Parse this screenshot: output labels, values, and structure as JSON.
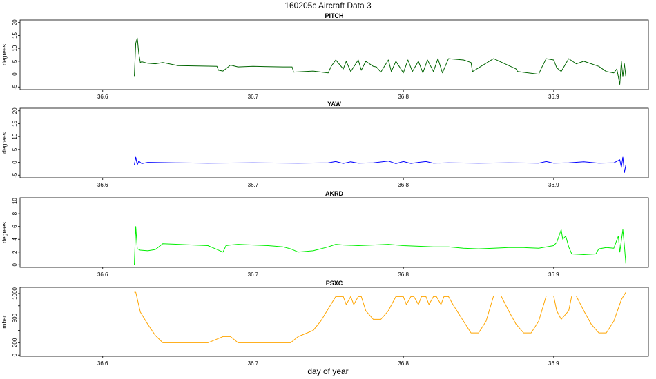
{
  "page": {
    "title": "160205c   Aircraft Data 3",
    "xlabel": "day of year"
  },
  "chart_data": [
    {
      "type": "line",
      "title": "PITCH",
      "ylabel": "degrees",
      "color": "#006400",
      "xlim": [
        36.545,
        36.963
      ],
      "ylim": [
        -6,
        21
      ],
      "xticks": [
        36.6,
        36.7,
        36.8,
        36.9
      ],
      "yticks": [
        -5,
        0,
        5,
        10,
        15,
        20
      ],
      "x": [
        36.621,
        36.622,
        36.623,
        36.624,
        36.625,
        36.626,
        36.63,
        36.635,
        36.64,
        36.65,
        36.66,
        36.67,
        36.676,
        36.677,
        36.68,
        36.685,
        36.69,
        36.7,
        36.71,
        36.72,
        36.726,
        36.727,
        36.74,
        36.75,
        36.752,
        36.755,
        36.76,
        36.762,
        36.765,
        36.77,
        36.772,
        36.775,
        36.78,
        36.782,
        36.785,
        36.79,
        36.792,
        36.795,
        36.8,
        36.803,
        36.806,
        36.81,
        36.813,
        36.816,
        36.82,
        36.823,
        36.826,
        36.83,
        36.84,
        36.845,
        36.846,
        36.86,
        36.875,
        36.876,
        36.89,
        36.892,
        36.895,
        36.9,
        36.902,
        36.905,
        36.91,
        36.915,
        36.92,
        36.93,
        36.935,
        36.94,
        36.942,
        36.944,
        36.945,
        36.946,
        36.947,
        36.948
      ],
      "y": [
        -1,
        12,
        14,
        8,
        4.5,
        4.8,
        4.2,
        4.0,
        4.5,
        3.3,
        3.2,
        3.1,
        3.0,
        1.5,
        1.2,
        3.5,
        2.8,
        3.0,
        2.9,
        2.8,
        2.8,
        0.8,
        1.2,
        0.5,
        3.0,
        5.5,
        2.0,
        5.0,
        1.0,
        5.5,
        1.5,
        5.0,
        3.0,
        2.8,
        0.8,
        5.5,
        1.0,
        5.0,
        0.5,
        5.5,
        1.0,
        5.0,
        0.5,
        5.5,
        1.0,
        6.0,
        0.5,
        6.0,
        5.5,
        4.5,
        1.0,
        6.0,
        2.0,
        1.0,
        0.0,
        2.5,
        6.0,
        5.5,
        2.5,
        1.0,
        6.0,
        4.0,
        5.0,
        3.0,
        1.0,
        0.5,
        2.0,
        -4.0,
        5.0,
        -1.0,
        4.0,
        -1.0
      ]
    },
    {
      "type": "line",
      "title": "YAW",
      "ylabel": "degrees",
      "color": "#0000ff",
      "xlim": [
        36.545,
        36.963
      ],
      "ylim": [
        -6,
        21
      ],
      "xticks": [
        36.6,
        36.7,
        36.8,
        36.9
      ],
      "yticks": [
        -5,
        0,
        5,
        10,
        15,
        20
      ],
      "x": [
        36.621,
        36.622,
        36.623,
        36.624,
        36.626,
        36.63,
        36.65,
        36.67,
        36.7,
        36.73,
        36.75,
        36.755,
        36.76,
        36.765,
        36.77,
        36.78,
        36.79,
        36.795,
        36.8,
        36.805,
        36.81,
        36.815,
        36.82,
        36.83,
        36.85,
        36.87,
        36.89,
        36.895,
        36.9,
        36.91,
        36.92,
        36.93,
        36.94,
        36.944,
        36.945,
        36.946,
        36.947,
        36.948
      ],
      "y": [
        -1.0,
        2.0,
        -1.0,
        0.5,
        -0.5,
        0.0,
        -0.2,
        -0.3,
        -0.2,
        -0.3,
        -0.2,
        0.3,
        -0.4,
        0.2,
        -0.3,
        -0.2,
        0.5,
        -0.5,
        0.3,
        -0.4,
        0.0,
        0.3,
        -0.3,
        -0.2,
        -0.3,
        -0.2,
        -0.3,
        0.3,
        -0.3,
        -0.2,
        0.2,
        -0.3,
        -0.2,
        1.0,
        -2.0,
        2.0,
        -4.0,
        -1.0
      ]
    },
    {
      "type": "line",
      "title": "AKRD",
      "ylabel": "degrees",
      "color": "#00ee00",
      "xlim": [
        36.545,
        36.963
      ],
      "ylim": [
        -0.4,
        10.5
      ],
      "xticks": [
        36.6,
        36.7,
        36.8,
        36.9
      ],
      "yticks": [
        0,
        2,
        4,
        6,
        8,
        10
      ],
      "x": [
        36.621,
        36.622,
        36.623,
        36.625,
        36.63,
        36.635,
        36.64,
        36.65,
        36.66,
        36.67,
        36.675,
        36.68,
        36.682,
        36.685,
        36.69,
        36.7,
        36.71,
        36.72,
        36.725,
        36.73,
        36.74,
        36.75,
        36.755,
        36.76,
        36.77,
        36.78,
        36.79,
        36.8,
        36.81,
        36.82,
        36.83,
        36.84,
        36.85,
        36.86,
        36.87,
        36.88,
        36.89,
        36.9,
        36.902,
        36.905,
        36.906,
        36.908,
        36.91,
        36.912,
        36.92,
        36.928,
        36.93,
        36.935,
        36.94,
        36.943,
        36.944,
        36.946,
        36.947,
        36.948
      ],
      "y": [
        0.0,
        6.0,
        2.5,
        2.3,
        2.2,
        2.4,
        3.3,
        3.2,
        3.1,
        3.0,
        2.5,
        2.0,
        3.0,
        3.1,
        3.2,
        3.1,
        3.0,
        2.8,
        2.5,
        2.0,
        2.2,
        2.8,
        3.2,
        3.1,
        3.0,
        3.1,
        3.2,
        3.0,
        2.9,
        2.8,
        2.8,
        2.6,
        2.5,
        2.6,
        2.7,
        2.7,
        2.6,
        3.0,
        3.5,
        5.5,
        4.0,
        4.5,
        2.8,
        1.7,
        1.6,
        1.7,
        2.5,
        2.7,
        2.6,
        4.5,
        2.0,
        5.5,
        3.0,
        0.2
      ]
    },
    {
      "type": "line",
      "title": "PSXC",
      "ylabel": "mbar",
      "color": "#ffa500",
      "xlim": [
        36.545,
        36.963
      ],
      "ylim": [
        -20,
        1100
      ],
      "xticks": [
        36.6,
        36.7,
        36.8,
        36.9
      ],
      "yticks": [
        0,
        200,
        400,
        600,
        800,
        1000
      ],
      "ytick_labels": [
        "0",
        "200",
        "",
        "600",
        "",
        "1000"
      ],
      "x": [
        36.621,
        36.622,
        36.625,
        36.63,
        36.635,
        36.64,
        36.65,
        36.66,
        36.67,
        36.68,
        36.685,
        36.69,
        36.7,
        36.71,
        36.72,
        36.725,
        36.73,
        36.735,
        36.74,
        36.745,
        36.75,
        36.755,
        36.76,
        36.762,
        36.765,
        36.767,
        36.77,
        36.772,
        36.775,
        36.78,
        36.785,
        36.79,
        36.795,
        36.8,
        36.802,
        36.805,
        36.807,
        36.81,
        36.812,
        36.815,
        36.817,
        36.82,
        36.822,
        36.825,
        36.827,
        36.83,
        36.833,
        36.84,
        36.845,
        36.85,
        36.855,
        36.86,
        36.865,
        36.87,
        36.875,
        36.88,
        36.885,
        36.89,
        36.895,
        36.9,
        36.902,
        36.905,
        36.91,
        36.912,
        36.915,
        36.92,
        36.925,
        36.93,
        36.935,
        36.94,
        36.945,
        36.948
      ],
      "y": [
        1020,
        1020,
        700,
        500,
        320,
        200,
        200,
        200,
        200,
        300,
        300,
        200,
        200,
        200,
        200,
        200,
        300,
        350,
        400,
        550,
        750,
        950,
        950,
        820,
        950,
        820,
        950,
        950,
        720,
        580,
        580,
        720,
        950,
        950,
        820,
        950,
        950,
        820,
        950,
        950,
        820,
        950,
        950,
        820,
        950,
        950,
        820,
        550,
        360,
        360,
        550,
        960,
        960,
        720,
        500,
        360,
        360,
        550,
        960,
        960,
        720,
        580,
        720,
        960,
        960,
        720,
        500,
        360,
        360,
        550,
        900,
        1020
      ]
    }
  ]
}
